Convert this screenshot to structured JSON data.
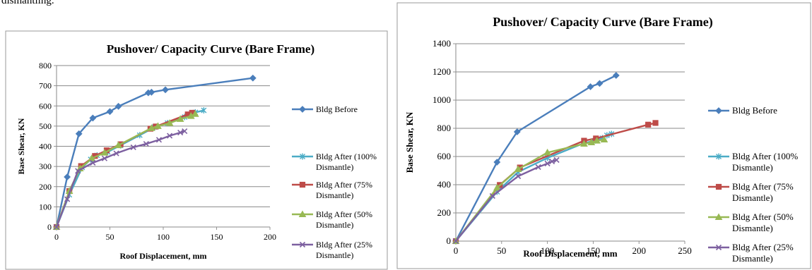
{
  "page": {
    "top_text": "dismantling."
  },
  "chart_data": [
    {
      "type": "line",
      "title": "Pushover/ Capacity Curve  (Bare Frame)",
      "xlabel": "Roof Displacement, mm",
      "ylabel": "Base Shear, KN",
      "xlim": [
        0,
        200
      ],
      "ylim": [
        0,
        800
      ],
      "xticks": [
        0,
        50,
        100,
        150,
        200
      ],
      "yticks": [
        0,
        100,
        200,
        300,
        400,
        500,
        600,
        700,
        800
      ],
      "grid": true,
      "legend": "right",
      "series": [
        {
          "name": "Bldg Before",
          "color": "#4a7ebb",
          "marker": "diamond",
          "x": [
            0,
            10,
            21,
            34,
            50,
            58,
            86,
            89,
            102,
            184
          ],
          "y": [
            0,
            248,
            462,
            540,
            572,
            598,
            665,
            668,
            680,
            738
          ]
        },
        {
          "name": "Bldg After (100% Dismantle)",
          "color": "#4bacc6",
          "marker": "asterisk",
          "x": [
            0,
            12,
            24,
            32,
            38,
            48,
            60,
            78,
            92,
            104,
            120,
            130,
            138
          ],
          "y": [
            0,
            160,
            295,
            335,
            355,
            372,
            405,
            455,
            495,
            515,
            545,
            568,
            578
          ]
        },
        {
          "name": "Bldg After (75% Dismantle)",
          "color": "#be4b48",
          "marker": "square",
          "x": [
            0,
            12,
            23,
            36,
            47,
            60,
            88,
            93,
            123,
            127
          ],
          "y": [
            0,
            178,
            302,
            352,
            380,
            410,
            487,
            498,
            558,
            566
          ]
        },
        {
          "name": "Bldg After (50% Dismantle)",
          "color": "#98b954",
          "marker": "triangle",
          "x": [
            0,
            12,
            22,
            33,
            45,
            58,
            89,
            95,
            106,
            116,
            126,
            130
          ],
          "y": [
            0,
            178,
            290,
            340,
            368,
            405,
            490,
            500,
            515,
            535,
            550,
            560
          ]
        },
        {
          "name": "Bldg After (25% Dismantle)",
          "color": "#7d60a0",
          "marker": "x",
          "x": [
            0,
            10,
            20,
            34,
            45,
            56,
            72,
            84,
            96,
            106,
            116,
            120
          ],
          "y": [
            0,
            138,
            278,
            318,
            340,
            365,
            395,
            412,
            432,
            452,
            468,
            475
          ]
        }
      ]
    },
    {
      "type": "line",
      "title": "Pushover/ Capacity Curve  (Bare Frame)",
      "xlabel": "Roof Displacement, mm",
      "ylabel": "Base Shear, KN",
      "xlim": [
        0,
        250
      ],
      "ylim": [
        0,
        1400
      ],
      "xticks": [
        0,
        50,
        100,
        150,
        200,
        250
      ],
      "yticks": [
        0,
        200,
        400,
        600,
        800,
        1000,
        1200,
        1400
      ],
      "grid": true,
      "legend": "right",
      "series": [
        {
          "name": "Bldg Before",
          "color": "#4a7ebb",
          "marker": "diamond",
          "x": [
            0,
            45,
            67,
            147,
            157,
            175
          ],
          "y": [
            0,
            560,
            775,
            1095,
            1118,
            1175
          ]
        },
        {
          "name": "Bldg After (100% Dismantle)",
          "color": "#4bacc6",
          "marker": "asterisk",
          "x": [
            0,
            45,
            68,
            100,
            140,
            150,
            160,
            165,
            170
          ],
          "y": [
            0,
            350,
            490,
            590,
            695,
            710,
            730,
            750,
            760
          ]
        },
        {
          "name": "Bldg After (75% Dismantle)",
          "color": "#be4b48",
          "marker": "square",
          "x": [
            0,
            48,
            70,
            140,
            153,
            210,
            218
          ],
          "y": [
            0,
            398,
            522,
            712,
            728,
            826,
            838
          ]
        },
        {
          "name": "Bldg After (50% Dismantle)",
          "color": "#98b954",
          "marker": "triangle",
          "x": [
            0,
            45,
            68,
            100,
            140,
            148,
            154,
            162
          ],
          "y": [
            0,
            378,
            510,
            628,
            690,
            700,
            712,
            720
          ]
        },
        {
          "name": "Bldg After (25% Dismantle)",
          "color": "#7d60a0",
          "marker": "x",
          "x": [
            0,
            40,
            68,
            90,
            100,
            105,
            110
          ],
          "y": [
            0,
            320,
            460,
            525,
            550,
            565,
            575
          ]
        }
      ]
    }
  ]
}
